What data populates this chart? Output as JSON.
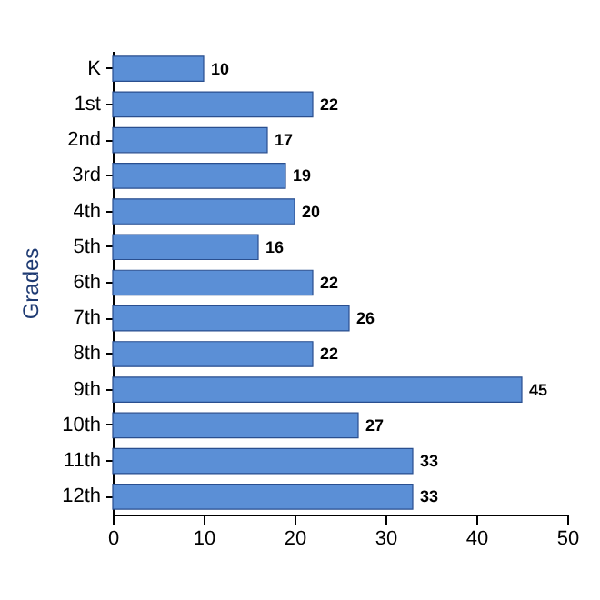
{
  "chart_data": {
    "type": "bar",
    "orientation": "horizontal",
    "ylabel": "Grades",
    "categories": [
      "K",
      "1st",
      "2nd",
      "3rd",
      "4th",
      "5th",
      "6th",
      "7th",
      "8th",
      "9th",
      "10th",
      "11th",
      "12th"
    ],
    "series": [
      {
        "color": "#5b8fd6",
        "values": [
          10,
          22,
          17,
          19,
          20,
          16,
          22,
          26,
          22,
          45,
          27,
          33,
          33
        ]
      }
    ],
    "xlim": [
      0,
      50
    ],
    "xticks": [
      0,
      10,
      20,
      30,
      40,
      50
    ],
    "data_labels": true
  }
}
